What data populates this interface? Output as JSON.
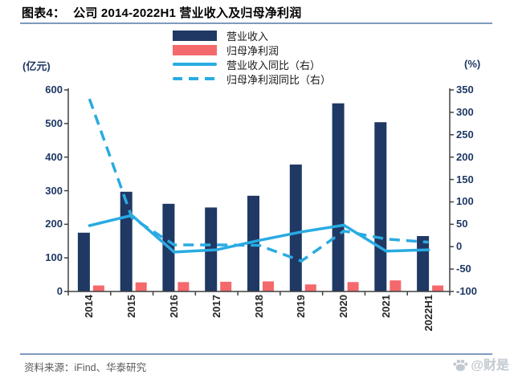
{
  "header": {
    "figure_label": "图表4：",
    "title": "公司 2014-2022H1 营业收入及归母净利润"
  },
  "footer": {
    "source": "资料来源：iFind、华泰研究",
    "watermark": "@财是"
  },
  "colors": {
    "revenue_bar": "#1F3864",
    "profit_bar": "#F4696B",
    "line_blue": "#29ABE2",
    "axis": "#404040",
    "axis_text": "#1F3864"
  },
  "chart_data": {
    "type": "bar",
    "subtype": "bar-line combo, dual axis",
    "title": "公司 2014-2022H1 营业收入及归母净利润",
    "categories": [
      "2014",
      "2015",
      "2016",
      "2017",
      "2018",
      "2019",
      "2020",
      "2021",
      "2022H1"
    ],
    "series": [
      {
        "name": "营业收入",
        "type": "bar",
        "axis": "left",
        "color": "#1F3864",
        "values": [
          175,
          297,
          261,
          250,
          285,
          378,
          560,
          504,
          165
        ]
      },
      {
        "name": "归母净利润",
        "type": "bar",
        "axis": "left",
        "color": "#F4696B",
        "values": [
          18,
          27,
          28,
          29,
          30,
          21,
          28,
          33,
          18
        ]
      },
      {
        "name": "营业收入同比（右）",
        "type": "line",
        "style": "solid",
        "axis": "right",
        "color": "#29ABE2",
        "values": [
          47,
          70,
          -12,
          -7,
          14,
          33,
          48,
          -10,
          -7
        ]
      },
      {
        "name": "归母净利润同比（右）",
        "type": "line",
        "style": "dashed",
        "axis": "right",
        "color": "#29ABE2",
        "values": [
          330,
          65,
          4,
          4,
          3,
          -32,
          35,
          17,
          10
        ]
      }
    ],
    "left_axis": {
      "unit": "(亿元)",
      "min": 0,
      "max": 600,
      "step": 100
    },
    "right_axis": {
      "unit": "(%)",
      "min": -100,
      "max": 350,
      "step": 50
    },
    "legend_position": "top-center",
    "grid": false
  }
}
